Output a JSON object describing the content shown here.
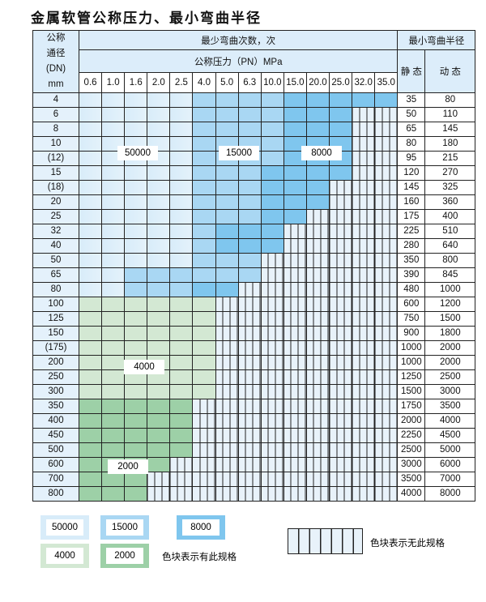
{
  "title": "金属软管公称压力、最小弯曲半径",
  "header": {
    "dn": "公称\n通径\n(DN)\nmm",
    "cycles": "最少弯曲次数，次",
    "pressure": "公称压力（PN）MPa",
    "radius": "最小弯曲半径",
    "static": "静 态",
    "dynamic": "动 态"
  },
  "pressures": [
    "0.6",
    "1.0",
    "1.6",
    "2.0",
    "2.5",
    "4.0",
    "5.0",
    "6.3",
    "10.0",
    "15.0",
    "20.0",
    "25.0",
    "32.0",
    "35.0"
  ],
  "colors": {
    "L": "#d8ecf9",
    "M": "#a9d7f3",
    "D": "#7fc6ee",
    "G": "#d3e8d3",
    "H": "#9dd0a7",
    "N": "hatched"
  },
  "rows": [
    {
      "dn": "4",
      "static": "35",
      "dynamic": "80",
      "fill": "LLLLLMMMMDDDDD"
    },
    {
      "dn": "6",
      "static": "50",
      "dynamic": "110",
      "fill": "LLLLLMMMMDDDNN"
    },
    {
      "dn": "8",
      "static": "65",
      "dynamic": "145",
      "fill": "LLLLLMMMMDDDNN"
    },
    {
      "dn": "10",
      "static": "80",
      "dynamic": "180",
      "fill": "LLLLLMMMMDDDNN"
    },
    {
      "dn": "(12)",
      "static": "95",
      "dynamic": "215",
      "fill": "LLLLLMMMMDDDNN"
    },
    {
      "dn": "15",
      "static": "120",
      "dynamic": "270",
      "fill": "LLLLLMMMDDDDNN"
    },
    {
      "dn": "(18)",
      "static": "145",
      "dynamic": "325",
      "fill": "LLLLLMMMDDDNNN"
    },
    {
      "dn": "20",
      "static": "160",
      "dynamic": "360",
      "fill": "LLLLLMMMDDDNNN"
    },
    {
      "dn": "25",
      "static": "175",
      "dynamic": "400",
      "fill": "LLLLLMMMDDNNNN"
    },
    {
      "dn": "32",
      "static": "225",
      "dynamic": "510",
      "fill": "LLLLLMDDDNNNNN"
    },
    {
      "dn": "40",
      "static": "280",
      "dynamic": "640",
      "fill": "LLLLLMDDDNNNNN"
    },
    {
      "dn": "50",
      "static": "350",
      "dynamic": "800",
      "fill": "LLLLLMMMNNNNNN"
    },
    {
      "dn": "65",
      "static": "390",
      "dynamic": "845",
      "fill": "LLMMMMMMNNNNNN"
    },
    {
      "dn": "80",
      "static": "480",
      "dynamic": "1000",
      "fill": "LLMMMDDNNNNNNN"
    },
    {
      "dn": "100",
      "static": "600",
      "dynamic": "1200",
      "fill": "GGGGGGNNNNNNNN"
    },
    {
      "dn": "125",
      "static": "750",
      "dynamic": "1500",
      "fill": "GGGGGGNNNNNNNN"
    },
    {
      "dn": "150",
      "static": "900",
      "dynamic": "1800",
      "fill": "GGGGGGNNNNNNNN"
    },
    {
      "dn": "(175)",
      "static": "1000",
      "dynamic": "2000",
      "fill": "GGGGGGNNNNNNNN"
    },
    {
      "dn": "200",
      "static": "1000",
      "dynamic": "2000",
      "fill": "GGGGGGNNNNNNNN"
    },
    {
      "dn": "250",
      "static": "1250",
      "dynamic": "2500",
      "fill": "GGGGGGNNNNNNNN"
    },
    {
      "dn": "300",
      "static": "1500",
      "dynamic": "3000",
      "fill": "GGGGGGNNNNNNNN"
    },
    {
      "dn": "350",
      "static": "1750",
      "dynamic": "3500",
      "fill": "HHHHHNNNNNNNNN"
    },
    {
      "dn": "400",
      "static": "2000",
      "dynamic": "4000",
      "fill": "HHHHHNNNNNNNNN"
    },
    {
      "dn": "450",
      "static": "2250",
      "dynamic": "4500",
      "fill": "HHHHHNNNNNNNNN"
    },
    {
      "dn": "500",
      "static": "2500",
      "dynamic": "5000",
      "fill": "HHHHHNNNNNNNNN"
    },
    {
      "dn": "600",
      "static": "3000",
      "dynamic": "6000",
      "fill": "HHHHNNNNNNNNNN"
    },
    {
      "dn": "700",
      "static": "3500",
      "dynamic": "7000",
      "fill": "HHHNNNNNNNNNNN"
    },
    {
      "dn": "800",
      "static": "4000",
      "dynamic": "8000",
      "fill": "HHHNNNNNNNNNNN"
    }
  ],
  "region_labels": {
    "L": "50000",
    "M": "15000",
    "D": "8000",
    "G": "4000",
    "H": "2000"
  },
  "legend": {
    "has_spec": "色块表示有此规格",
    "no_spec": "色块表示无此规格"
  }
}
